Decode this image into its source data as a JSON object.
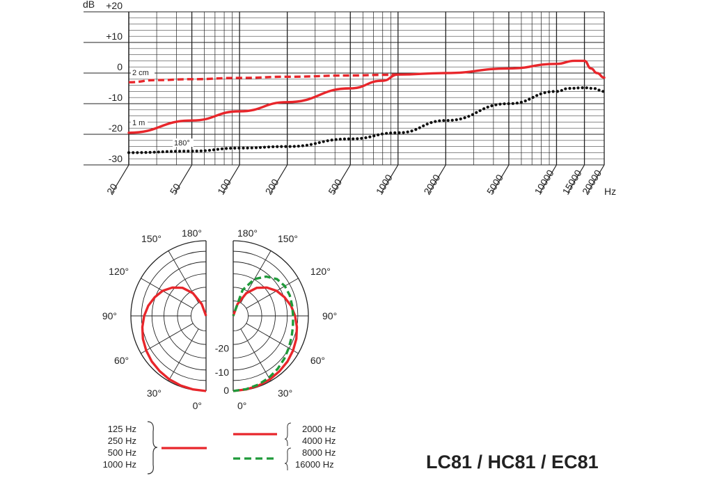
{
  "chart_data": [
    {
      "type": "line",
      "y_unit_label": "dB",
      "x_unit_label": "Hz",
      "x_scale": "log",
      "xlim": [
        20,
        20000
      ],
      "ylim": [
        -30,
        20
      ],
      "y_ticks": [
        20,
        10,
        0,
        -10,
        -20,
        -30
      ],
      "y_tick_labels": [
        "+20",
        "+10",
        "0",
        "-10",
        "-20",
        "-30"
      ],
      "x_tick_labels": [
        "20",
        "50",
        "100",
        "200",
        "500",
        "1000",
        "2000",
        "5000",
        "10000",
        "15000",
        "20000"
      ],
      "x_tick_values": [
        20,
        50,
        100,
        200,
        500,
        1000,
        2000,
        5000,
        10000,
        15000,
        20000
      ],
      "grid": true,
      "curve_labels": [
        "2 cm",
        "1 m",
        "180°"
      ],
      "series": [
        {
          "style": "dashed",
          "color": "#e8262b",
          "x": [
            20,
            30,
            50,
            100,
            200,
            500,
            800,
            1000
          ],
          "y": [
            -3.0,
            -2.3,
            -2.0,
            -1.6,
            -1.2,
            -0.8,
            -0.6,
            -0.5
          ]
        },
        {
          "style": "solid",
          "color": "#e8262b",
          "x": [
            20,
            50,
            100,
            200,
            500,
            800,
            1000,
            2000,
            5000,
            10000,
            13000,
            15000,
            16500,
            18000,
            20000
          ],
          "y": [
            -19.5,
            -15.5,
            -12.5,
            -9.5,
            -5.0,
            -2.5,
            -0.5,
            0.0,
            1.5,
            3.0,
            4.0,
            4.0,
            1.5,
            0.0,
            -1.5
          ]
        },
        {
          "style": "dotted",
          "color": "#111111",
          "x": [
            20,
            50,
            100,
            200,
            500,
            1000,
            2000,
            5000,
            10000,
            12000,
            15000,
            17000,
            20000
          ],
          "y": [
            -26.0,
            -25.5,
            -24.5,
            -24.0,
            -21.5,
            -19.5,
            -15.5,
            -10.0,
            -6.0,
            -5.0,
            -4.8,
            -5.0,
            -6.0
          ]
        }
      ]
    },
    {
      "type": "polar",
      "angle_labels_left": [
        "180°",
        "150°",
        "120°",
        "90°",
        "60°",
        "30°",
        "0°"
      ],
      "angle_labels_right": [
        "180°",
        "150°",
        "120°",
        "90°",
        "60°",
        "30°",
        "0°"
      ],
      "radial_labels": [
        "-20",
        "-10",
        "0"
      ],
      "rlim": [
        -30,
        0
      ],
      "series_left": [
        {
          "style": "solid",
          "color": "#e8262b",
          "angles": [
            0,
            10,
            20,
            30,
            40,
            50,
            60,
            70,
            80,
            90,
            100,
            110,
            120,
            130,
            140,
            150,
            160,
            170,
            180
          ],
          "db": [
            0,
            -0.2,
            -0.4,
            -0.7,
            -1.2,
            -1.7,
            -2.4,
            -3.2,
            -4.2,
            -5.3,
            -6.6,
            -8.2,
            -10.0,
            -12.4,
            -15.4,
            -19.5,
            -25.0,
            -30,
            -30
          ]
        }
      ],
      "series_right": [
        {
          "style": "solid",
          "color": "#e8262b",
          "angles": [
            0,
            10,
            20,
            30,
            40,
            50,
            60,
            70,
            80,
            90,
            100,
            110,
            120,
            130,
            140,
            150,
            160,
            170,
            180
          ],
          "db": [
            0,
            -0.2,
            -0.4,
            -0.7,
            -1.2,
            -1.7,
            -2.4,
            -3.2,
            -4.2,
            -5.3,
            -6.6,
            -8.2,
            -10.0,
            -12.4,
            -15.4,
            -19.5,
            -25.0,
            -30,
            -30
          ]
        },
        {
          "style": "dashed",
          "color": "#1f9a3a",
          "angles": [
            0,
            10,
            20,
            30,
            40,
            50,
            60,
            70,
            80,
            90,
            100,
            110,
            120,
            130,
            140,
            150,
            160,
            170,
            180
          ],
          "db": [
            0,
            -0.3,
            -0.8,
            -1.5,
            -2.4,
            -3.4,
            -4.4,
            -5.2,
            -5.8,
            -6.1,
            -6.1,
            -6.0,
            -6.2,
            -7.2,
            -9.5,
            -13.0,
            -19.0,
            -30,
            -30
          ]
        }
      ]
    }
  ],
  "legend": {
    "left_group": [
      "125 Hz",
      "250 Hz",
      "500 Hz",
      "1000 Hz"
    ],
    "right_group_solid": [
      "2000 Hz",
      "4000 Hz"
    ],
    "right_group_dashed": [
      "8000 Hz",
      "16000 Hz"
    ],
    "solid_color": "#e8262b",
    "dashed_color": "#1f9a3a"
  },
  "model_title": "LC81 / HC81 / EC81"
}
